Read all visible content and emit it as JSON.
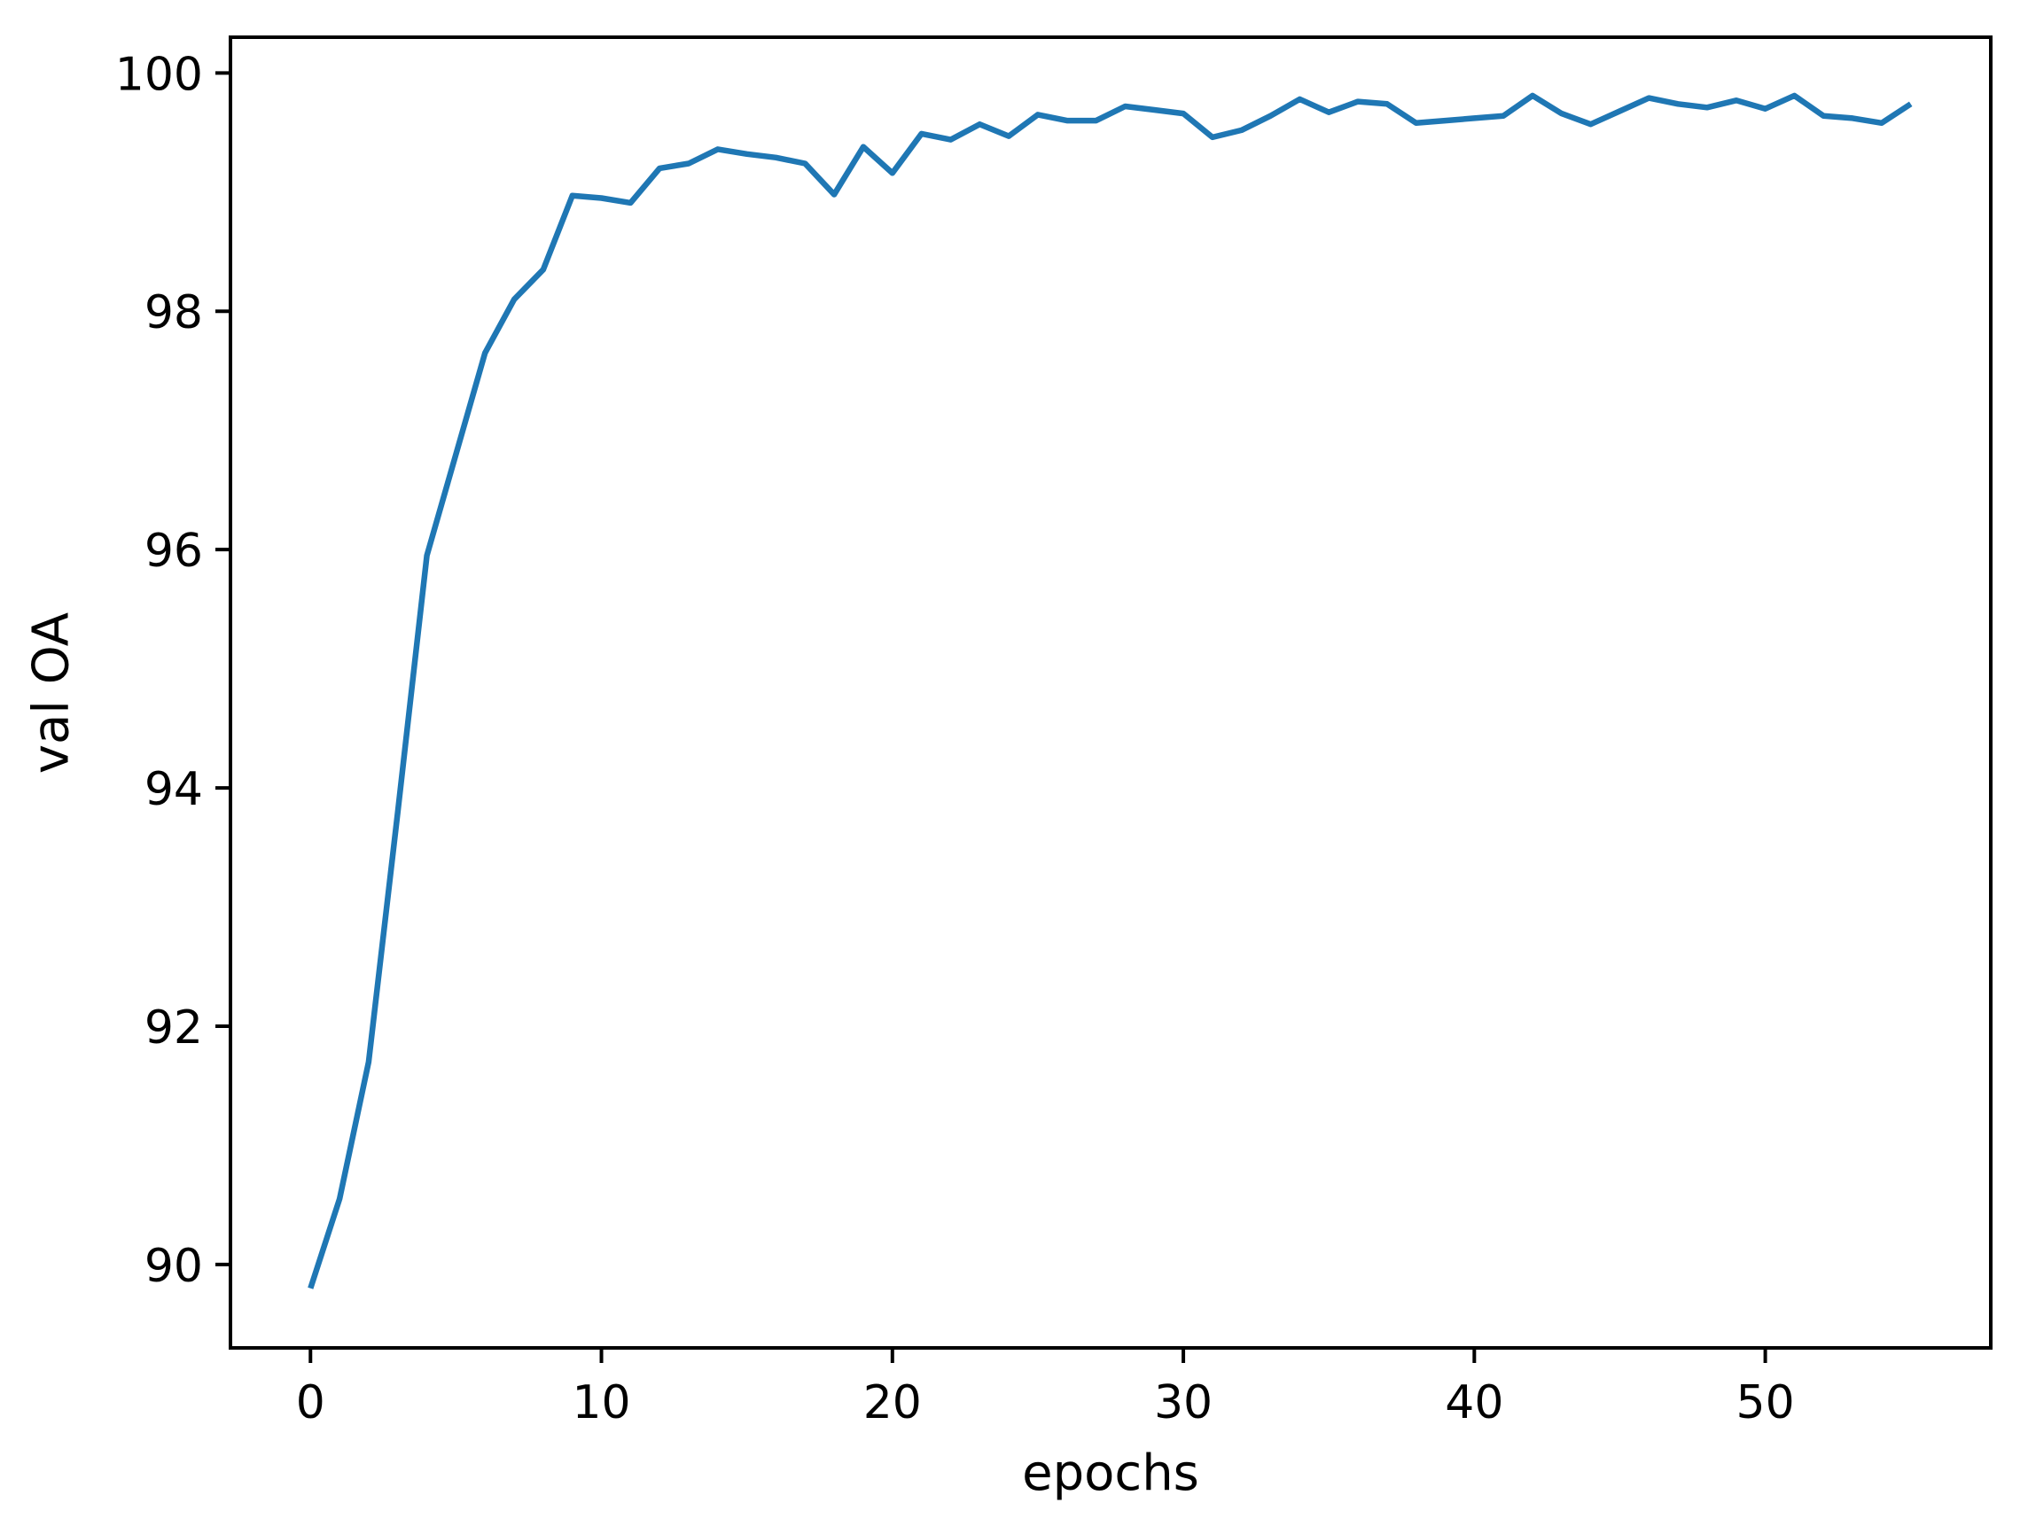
{
  "figure": {
    "background": "#ffffff",
    "axis_color": "#000000",
    "tick_label_color": "#000000"
  },
  "chart_data": {
    "type": "line",
    "title": "",
    "xlabel": "epochs",
    "ylabel": "val OA",
    "grid": false,
    "legend": false,
    "line_color": "#1f77b4",
    "xlim": [
      -2.75,
      57.75
    ],
    "ylim": [
      89.3,
      100.3
    ],
    "xticks": [
      0,
      10,
      20,
      30,
      40,
      50
    ],
    "yticks": [
      90,
      92,
      94,
      96,
      98,
      100
    ],
    "x": [
      0,
      1,
      2,
      3,
      4,
      5,
      6,
      7,
      8,
      9,
      10,
      11,
      12,
      13,
      14,
      15,
      16,
      17,
      18,
      19,
      20,
      21,
      22,
      23,
      24,
      25,
      26,
      27,
      28,
      29,
      30,
      31,
      32,
      33,
      34,
      35,
      36,
      37,
      38,
      39,
      40,
      41,
      42,
      43,
      44,
      45,
      46,
      47,
      48,
      49,
      50,
      51,
      52,
      53,
      54,
      55
    ],
    "series": [
      {
        "name": "val OA",
        "color": "#1f77b4",
        "values": [
          89.8,
          90.55,
          91.7,
          93.8,
          95.95,
          96.8,
          97.65,
          98.1,
          98.35,
          98.97,
          98.95,
          98.91,
          99.2,
          99.24,
          99.36,
          99.32,
          99.29,
          99.24,
          98.98,
          99.38,
          99.16,
          99.49,
          99.44,
          99.57,
          99.47,
          99.65,
          99.6,
          99.6,
          99.72,
          99.69,
          99.66,
          99.46,
          99.52,
          99.64,
          99.78,
          99.67,
          99.76,
          99.74,
          99.58,
          99.6,
          99.62,
          99.64,
          99.81,
          99.66,
          99.57,
          99.68,
          99.79,
          99.74,
          99.71,
          99.77,
          99.7,
          99.81,
          99.64,
          99.62,
          99.58,
          99.74
        ]
      }
    ]
  }
}
